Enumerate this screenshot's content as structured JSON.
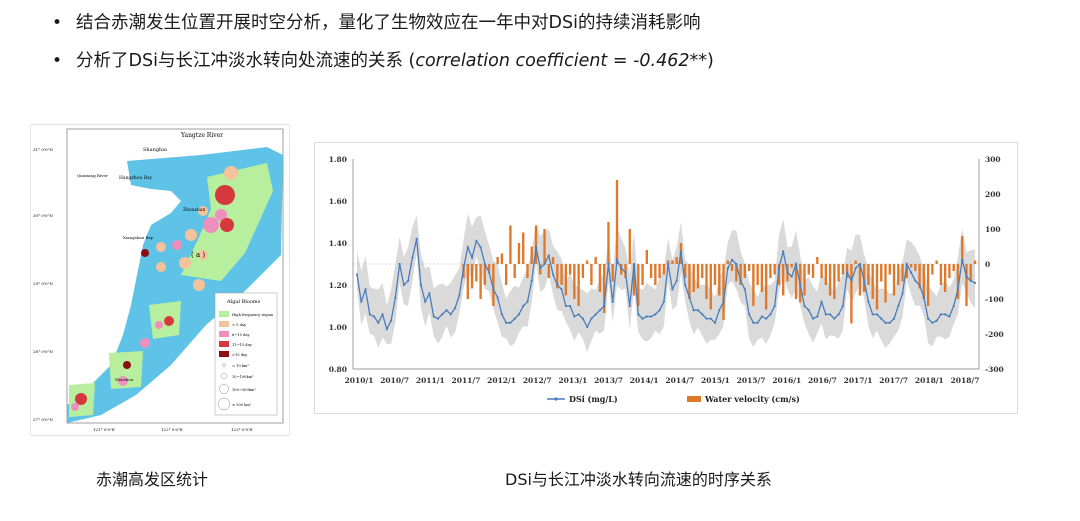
{
  "bullets": [
    {
      "text": "结合赤潮发生位置开展时空分析，量化了生物效应在一年中对DSi的持续消耗影响",
      "italic": ""
    },
    {
      "text": "分析了DSi与长江冲淡水转向处流速的关系 (",
      "italic": "correlation coefficient = -0.462**",
      "suffix": ")"
    }
  ],
  "captions": {
    "map": "赤潮高发区统计",
    "chart": "DSi与长江冲淡水转向流速的时序关系"
  },
  "map": {
    "labels": {
      "river": "Yangtze River",
      "shanghai": "Shanghai",
      "qiantang": "Qiantang River",
      "hangzhou": "Hangzhou Bay",
      "zhoushan": "Zhoushan",
      "xiangshan": "Xiangshan Bay",
      "wenzhou": "Wenzhou",
      "panel": "( a )"
    },
    "lat_ticks": [
      "31° 0'0\"N",
      "30° 0'0\"N",
      "29° 0'0\"N",
      "28° 0'0\"N",
      "27° 0'0\"N"
    ],
    "lon_ticks": [
      "121° 0'0\"E",
      "122° 0'0\"E",
      "123° 0'0\"E"
    ],
    "legend": {
      "title": "Algal Blooms",
      "items": [
        "High frequency region",
        "< 5 day",
        "6~10 day",
        "11~15 day",
        ">15 day"
      ],
      "size_items": [
        "< 10 km²",
        "10~100km²",
        "100~300km²",
        "≥ 300 km²"
      ],
      "colors": [
        "#b7ef9e",
        "#f6c29b",
        "#ee8fbd",
        "#d6393d",
        "#8b0e12"
      ]
    }
  },
  "chart_data": {
    "type": "line+bar",
    "x_tick_labels": [
      "2010/1",
      "2010/7",
      "2011/1",
      "2011/7",
      "2012/1",
      "2012/7",
      "2013/1",
      "2013/7",
      "2014/1",
      "2014/7",
      "2015/1",
      "2015/7",
      "2016/1",
      "2016/7",
      "2017/1",
      "2017/7",
      "2018/1",
      "2018/7"
    ],
    "y_left": {
      "min": 0.8,
      "max": 1.8,
      "ticks": [
        "0.80",
        "1.00",
        "1.20",
        "1.40",
        "1.60",
        "1.80"
      ]
    },
    "y_right": {
      "min": -300,
      "max": 300,
      "ticks": [
        "-300",
        "-200",
        "-100",
        "0",
        "100",
        "200",
        "300"
      ]
    },
    "series": [
      {
        "name": "DSi (mg/L)",
        "type": "line",
        "axis": "left",
        "color": "#4a7ebb",
        "values": [
          1.25,
          1.12,
          1.18,
          1.06,
          1.05,
          1.02,
          1.06,
          0.99,
          1.03,
          1.14,
          1.3,
          1.2,
          1.22,
          1.33,
          1.42,
          1.2,
          1.12,
          1.16,
          1.05,
          1.04,
          1.06,
          1.08,
          1.06,
          1.09,
          1.15,
          1.28,
          1.38,
          1.33,
          1.41,
          1.38,
          1.3,
          1.26,
          1.18,
          1.14,
          1.06,
          1.02,
          1.02,
          1.04,
          1.06,
          1.1,
          1.12,
          1.22,
          1.38,
          1.28,
          1.3,
          1.34,
          1.25,
          1.2,
          1.18,
          1.1,
          1.1,
          1.05,
          1.06,
          1.04,
          1.0,
          1.04,
          1.06,
          1.08,
          1.1,
          1.3,
          1.12,
          1.32,
          1.28,
          1.26,
          1.1,
          1.3,
          1.06,
          1.04,
          1.05,
          1.05,
          1.06,
          1.08,
          1.12,
          1.3,
          1.18,
          1.22,
          1.36,
          1.2,
          1.14,
          1.08,
          1.08,
          1.06,
          1.04,
          1.04,
          1.02,
          1.08,
          1.12,
          1.28,
          1.32,
          1.3,
          1.22,
          1.18,
          1.06,
          1.02,
          1.02,
          1.05,
          1.04,
          1.06,
          1.1,
          1.28,
          1.36,
          1.26,
          1.24,
          1.3,
          1.2,
          1.1,
          1.08,
          1.04,
          1.05,
          1.12,
          1.06,
          1.06,
          1.04,
          1.06,
          1.1,
          1.26,
          1.22,
          1.28,
          1.3,
          1.22,
          1.12,
          1.06,
          1.06,
          1.04,
          1.02,
          1.02,
          1.04,
          1.1,
          1.16,
          1.3,
          1.26,
          1.22,
          1.2,
          1.14,
          1.04,
          1.02,
          1.03,
          1.06,
          1.06,
          1.05,
          1.1,
          1.18,
          1.32,
          1.24,
          1.22,
          1.21
        ]
      },
      {
        "name": "Water velocity (cm/s)",
        "type": "bar",
        "axis": "right",
        "color": "#e0782a",
        "values": [
          0,
          0,
          0,
          0,
          0,
          0,
          0,
          0,
          0,
          0,
          0,
          0,
          0,
          0,
          0,
          0,
          0,
          0,
          0,
          0,
          0,
          0,
          0,
          0,
          0,
          -40,
          -100,
          -70,
          -50,
          -100,
          -60,
          -20,
          -120,
          20,
          30,
          -60,
          110,
          -40,
          60,
          90,
          -40,
          50,
          110,
          -30,
          100,
          -40,
          20,
          -70,
          -60,
          -90,
          -30,
          -100,
          -120,
          -40,
          10,
          -60,
          20,
          -80,
          -140,
          120,
          -50,
          240,
          -30,
          -40,
          100,
          -90,
          -120,
          -60,
          40,
          -40,
          -60,
          -40,
          -30,
          10,
          10,
          20,
          60,
          -40,
          -100,
          -80,
          -70,
          -40,
          -100,
          -130,
          -60,
          -90,
          -160,
          10,
          -20,
          -50,
          -60,
          -40,
          -20,
          -120,
          -60,
          -80,
          -130,
          -40,
          -30,
          -60,
          -90,
          -50,
          -10,
          -100,
          -110,
          -90,
          -30,
          -40,
          20,
          -40,
          -60,
          -90,
          -100,
          -50,
          -30,
          -40,
          -170,
          10,
          -90,
          -80,
          -60,
          -100,
          -130,
          -50,
          -110,
          -30,
          -90,
          -60,
          -50,
          -40,
          -10,
          -20,
          -70,
          -100,
          -120,
          -30,
          10,
          -60,
          -80,
          -40,
          -20,
          -100,
          80,
          -120,
          -50,
          10
        ]
      }
    ],
    "band_color": "#d3d3d3",
    "legend_position": "bottom"
  }
}
